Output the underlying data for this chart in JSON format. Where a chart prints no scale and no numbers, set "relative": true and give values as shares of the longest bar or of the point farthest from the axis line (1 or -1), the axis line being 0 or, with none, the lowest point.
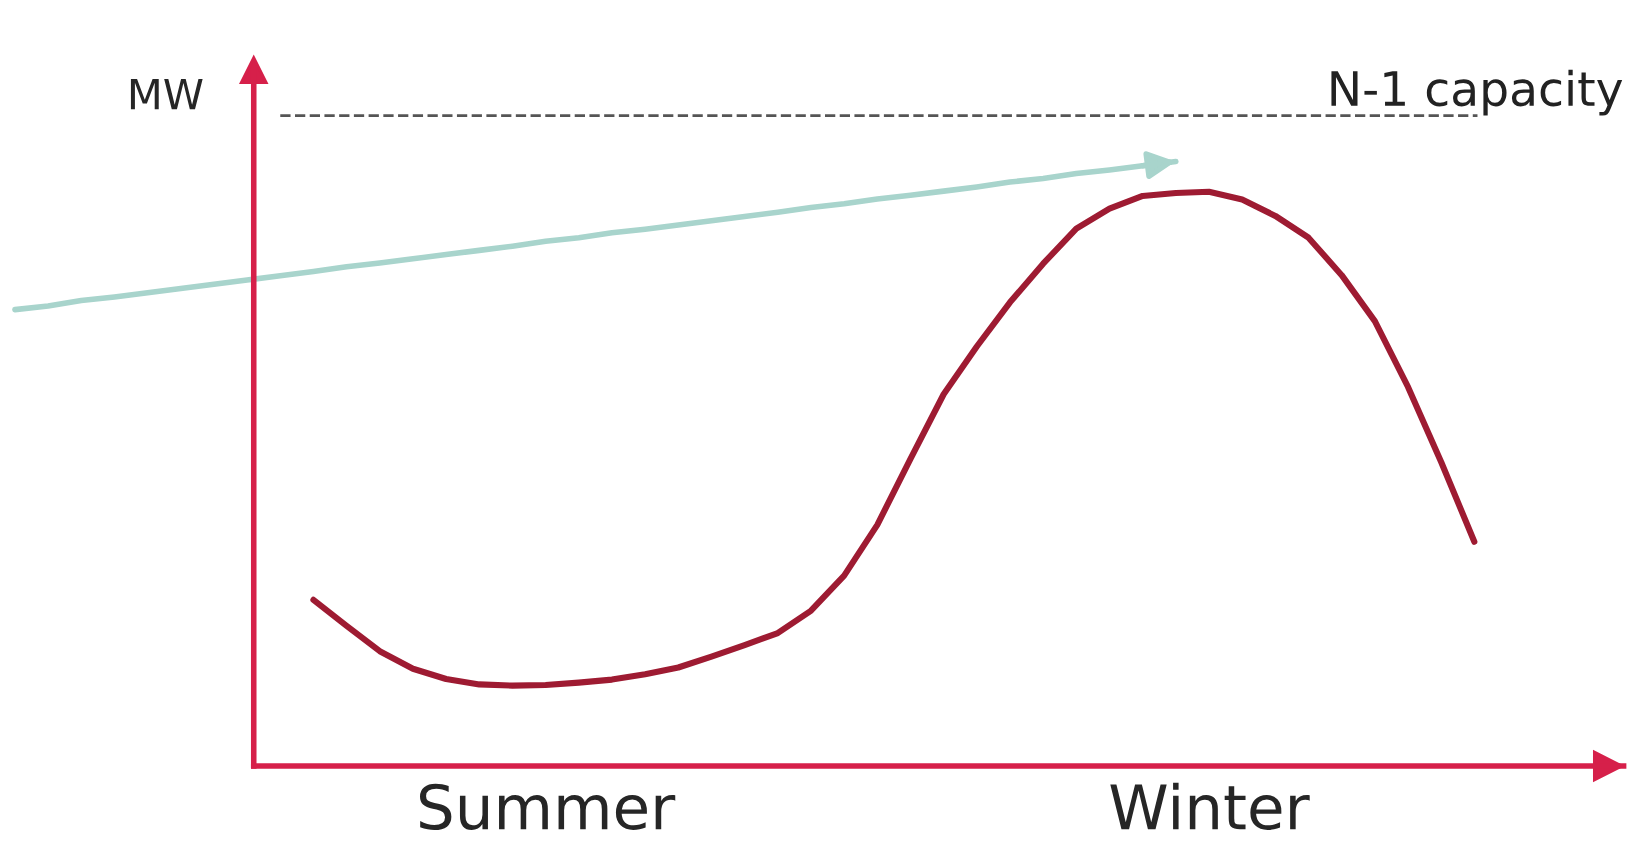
{
  "chart_data": {
    "type": "line",
    "relative": true,
    "ylabel": "MW",
    "categories": [
      null,
      null,
      null,
      null,
      null,
      null,
      null,
      null,
      null,
      null,
      null,
      null,
      null,
      null,
      null,
      null,
      "Summer",
      null,
      null,
      null,
      null,
      null,
      null,
      null,
      null,
      null,
      null,
      null,
      null,
      null,
      null,
      null,
      null,
      null,
      null,
      null,
      "Winter",
      null,
      null,
      null,
      null,
      null,
      null,
      null,
      null,
      null,
      null,
      null,
      null
    ],
    "series": [
      {
        "color": "#9e1b32",
        "values": [
          null,
          null,
          null,
          null,
          null,
          null,
          null,
          null,
          null,
          0.275,
          0.232,
          0.19,
          0.161,
          0.144,
          0.135,
          0.133,
          0.134,
          0.138,
          0.143,
          0.152,
          0.163,
          0.181,
          0.2,
          0.22,
          0.257,
          0.315,
          0.399,
          0.508,
          0.615,
          0.694,
          0.767,
          0.831,
          0.889,
          0.922,
          0.943,
          0.948,
          0.95,
          0.937,
          0.91,
          0.874,
          0.812,
          0.736,
          0.627,
          0.503,
          0.371,
          null,
          null,
          null,
          null
        ]
      },
      {
        "color": "#a8d4cc",
        "values": [
          0.755,
          0.761,
          0.77,
          0.776,
          0.783,
          0.79,
          0.797,
          0.804,
          0.811,
          0.818,
          0.826,
          0.832,
          0.839,
          0.846,
          0.853,
          0.86,
          0.868,
          0.874,
          0.882,
          0.888,
          0.895,
          0.902,
          0.909,
          0.916,
          0.924,
          0.93,
          0.938,
          0.944,
          0.951,
          0.958,
          0.966,
          0.972,
          0.98,
          0.986,
          0.993,
          1.0,
          null,
          null,
          null,
          null,
          null,
          null,
          null,
          null,
          null,
          null,
          null,
          null,
          null
        ]
      }
    ],
    "ref_lines": [
      {
        "axis": "y",
        "value": 1.076,
        "label": "N-1 capacity",
        "color": "#555555",
        "line_style": "dashed"
      }
    ],
    "legend": false,
    "grid": false,
    "line_style": "solid",
    "marker": "none"
  }
}
